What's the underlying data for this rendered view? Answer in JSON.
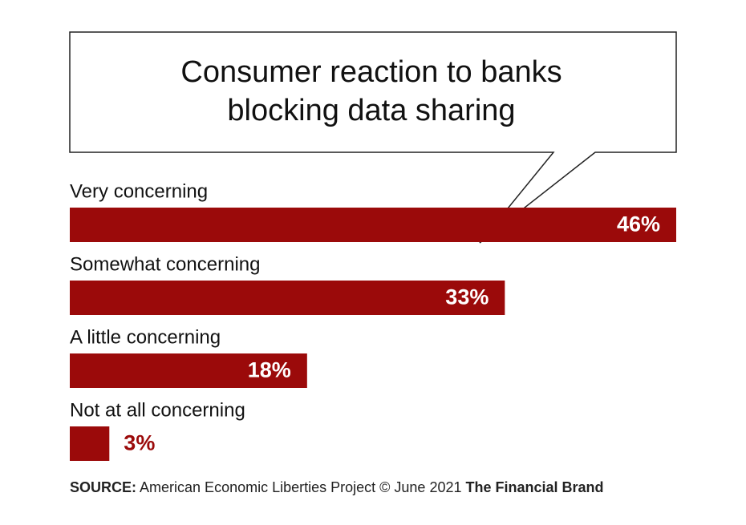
{
  "chart_data": {
    "type": "bar",
    "orientation": "horizontal",
    "title": "Consumer reaction to banks blocking data sharing",
    "categories": [
      "Very concerning",
      "Somewhat concerning",
      "A little concerning",
      "Not at all concerning"
    ],
    "values": [
      46,
      33,
      18,
      3
    ],
    "value_labels": [
      "46%",
      "33%",
      "18%",
      "3%"
    ],
    "color": "#9b0a0a",
    "source_label": "SOURCE:",
    "source": "American Economic Liberties Project © June 2021",
    "brand": "The Financial Brand"
  }
}
